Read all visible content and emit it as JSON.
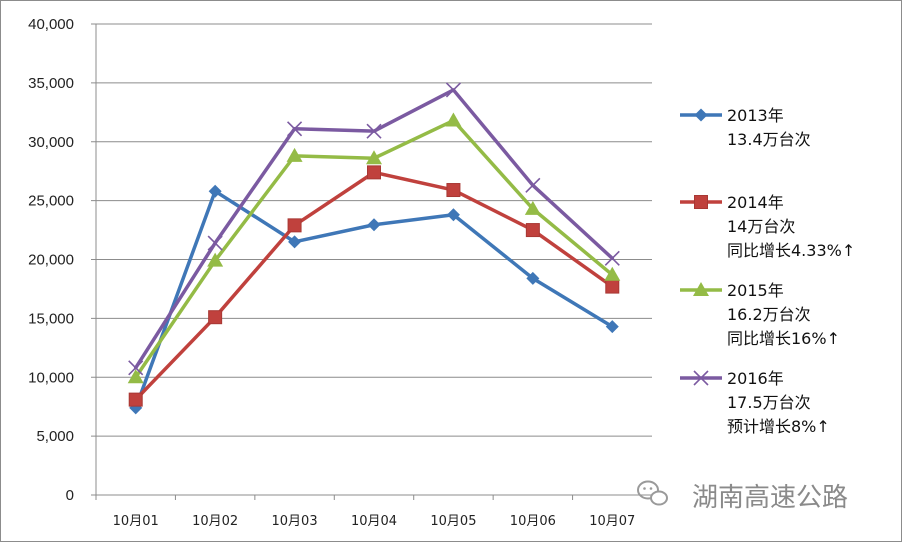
{
  "chart_data": {
    "type": "line",
    "categories": [
      "10月01",
      "10月02",
      "10月03",
      "10月04",
      "10月05",
      "10月06",
      "10月07"
    ],
    "ylim": [
      0,
      40000
    ],
    "yticks": [
      0,
      5000,
      10000,
      15000,
      20000,
      25000,
      30000,
      35000,
      40000
    ],
    "ytick_labels": [
      "0",
      "5,000",
      "10,000",
      "15,000",
      "20,000",
      "25,000",
      "30,000",
      "35,000",
      "40,000"
    ],
    "grid": true,
    "legend_position": "right",
    "series": [
      {
        "name": "2013年",
        "sub": [
          "13.4万台次"
        ],
        "color": "#3f77b7",
        "marker": "diamond",
        "values": [
          7400,
          25800,
          21500,
          22950,
          23800,
          18400,
          14300
        ]
      },
      {
        "name": "2014年",
        "sub": [
          "14万台次",
          "同比增长4.33%↑"
        ],
        "color": "#c0413d",
        "marker": "square",
        "values": [
          8100,
          15100,
          22900,
          27400,
          25900,
          22500,
          17700
        ]
      },
      {
        "name": "2015年",
        "sub": [
          "16.2万台次",
          "同比增长16%↑"
        ],
        "color": "#94bb46",
        "marker": "triangle",
        "values": [
          10000,
          19900,
          28800,
          28600,
          31800,
          24300,
          18700
        ]
      },
      {
        "name": "2016年",
        "sub": [
          "17.5万台次",
          "预计增长8%↑"
        ],
        "color": "#7b5aa1",
        "marker": "x",
        "values": [
          10800,
          21400,
          31100,
          30900,
          34400,
          26300,
          20100
        ]
      }
    ]
  },
  "watermark": {
    "text": "湖南高速公路",
    "icon": "wechat-icon"
  }
}
